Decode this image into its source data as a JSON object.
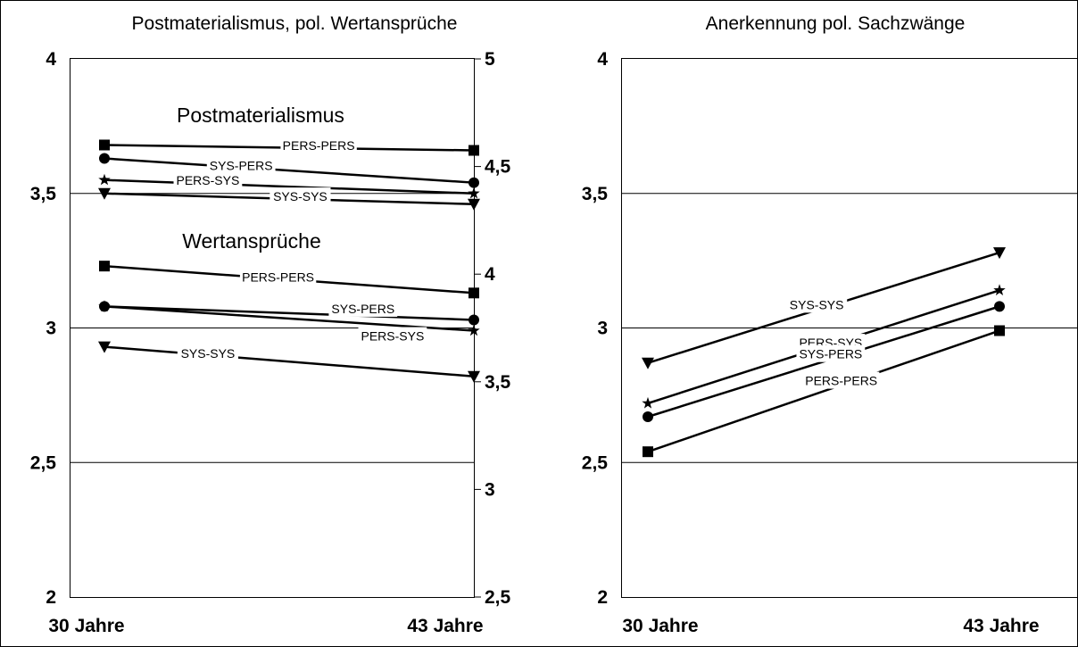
{
  "chart_data": [
    {
      "type": "line",
      "title": "Postmaterialismus, pol. Wertansprüche",
      "categories": [
        "30 Jahre",
        "43 Jahre"
      ],
      "left_axis": {
        "ylim": [
          2,
          4
        ],
        "ticks": [
          2,
          2.5,
          3,
          3.5,
          4
        ],
        "tick_labels": [
          "2",
          "2,5",
          "3",
          "3,5",
          "4"
        ]
      },
      "right_axis": {
        "ylim": [
          2.5,
          5
        ],
        "ticks": [
          2.5,
          3,
          3.5,
          4,
          4.5,
          5
        ],
        "tick_labels": [
          "2,5",
          "3",
          "3,5",
          "4",
          "4,5",
          "5"
        ]
      },
      "grid": "horizontal",
      "groups": [
        {
          "label": "Postmaterialismus",
          "axis": "left",
          "series": [
            {
              "name": "PERS-PERS",
              "marker": "square",
              "values": [
                3.68,
                3.66
              ]
            },
            {
              "name": "SYS-PERS",
              "marker": "circle",
              "values": [
                3.63,
                3.54
              ]
            },
            {
              "name": "PERS-SYS",
              "marker": "star",
              "values": [
                3.55,
                3.5
              ]
            },
            {
              "name": "SYS-SYS",
              "marker": "triangle-down",
              "values": [
                3.5,
                3.46
              ]
            }
          ]
        },
        {
          "label": "Wertansprüche",
          "axis": "left",
          "series": [
            {
              "name": "PERS-PERS",
              "marker": "square",
              "values": [
                3.23,
                3.13
              ]
            },
            {
              "name": "SYS-PERS",
              "marker": "circle",
              "values": [
                3.08,
                3.03
              ]
            },
            {
              "name": "PERS-SYS",
              "marker": "star",
              "values": [
                3.08,
                2.99
              ]
            },
            {
              "name": "SYS-SYS",
              "marker": "triangle-down",
              "values": [
                2.93,
                2.82
              ]
            }
          ]
        }
      ]
    },
    {
      "type": "line",
      "title": "Anerkennung pol. Sachzwänge",
      "categories": [
        "30 Jahre",
        "43 Jahre"
      ],
      "left_axis": {
        "ylim": [
          2,
          4
        ],
        "ticks": [
          2,
          2.5,
          3,
          3.5,
          4
        ],
        "tick_labels": [
          "2",
          "2,5",
          "3",
          "3,5",
          "4"
        ]
      },
      "grid": "horizontal",
      "series": [
        {
          "name": "SYS-SYS",
          "marker": "triangle-down",
          "values": [
            2.87,
            3.28
          ]
        },
        {
          "name": "PERS-SYS",
          "marker": "star",
          "values": [
            2.72,
            3.14
          ]
        },
        {
          "name": "SYS-PERS",
          "marker": "circle",
          "values": [
            2.67,
            3.08
          ]
        },
        {
          "name": "PERS-PERS",
          "marker": "square",
          "values": [
            2.54,
            2.99
          ]
        }
      ]
    }
  ]
}
